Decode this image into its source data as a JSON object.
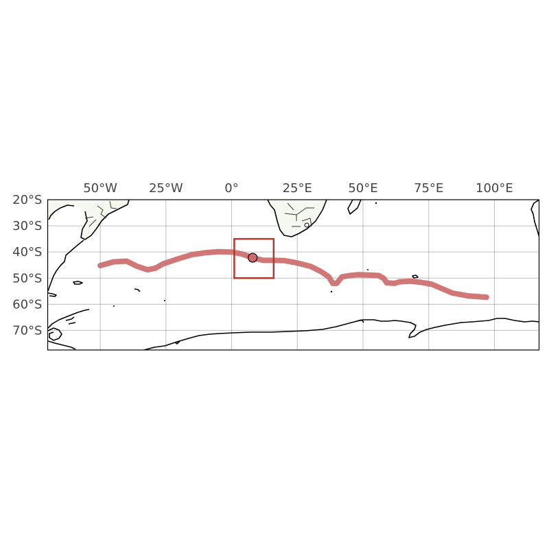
{
  "map": {
    "projection": "plate-carree",
    "lon_range": [
      -70,
      117
    ],
    "lat_range": [
      -20,
      -77.5
    ],
    "lon_ticks": [
      {
        "value": -50,
        "label": "50°W"
      },
      {
        "value": -25,
        "label": "25°W"
      },
      {
        "value": 0,
        "label": "0°"
      },
      {
        "value": 25,
        "label": "25°E"
      },
      {
        "value": 50,
        "label": "50°E"
      },
      {
        "value": 75,
        "label": "75°E"
      },
      {
        "value": 100,
        "label": "100°E"
      }
    ],
    "lat_ticks": [
      {
        "value": -20,
        "label": "20°S"
      },
      {
        "value": -30,
        "label": "30°S"
      },
      {
        "value": -40,
        "label": "40°S"
      },
      {
        "value": -50,
        "label": "50°S"
      },
      {
        "value": -60,
        "label": "60°S"
      },
      {
        "value": -70,
        "label": "70°S"
      }
    ],
    "gridlines": true,
    "track": {
      "color": "#cd6b6b",
      "points": [
        [
          -50,
          -45.2
        ],
        [
          -45,
          -43.8
        ],
        [
          -40,
          -43.5
        ],
        [
          -36,
          -45.5
        ],
        [
          -32,
          -46.8
        ],
        [
          -29,
          -46.2
        ],
        [
          -26,
          -44.5
        ],
        [
          -20,
          -42.5
        ],
        [
          -15,
          -41
        ],
        [
          -10,
          -40.3
        ],
        [
          -5,
          -39.9
        ],
        [
          0,
          -40
        ],
        [
          4,
          -40.8
        ],
        [
          8,
          -42.2
        ],
        [
          12,
          -43.2
        ],
        [
          16,
          -43.2
        ],
        [
          20,
          -43.3
        ],
        [
          25,
          -44.2
        ],
        [
          30,
          -45.5
        ],
        [
          34,
          -47.5
        ],
        [
          37,
          -49.5
        ],
        [
          38.5,
          -52
        ],
        [
          40,
          -52
        ],
        [
          42,
          -49.5
        ],
        [
          45,
          -49
        ],
        [
          48,
          -48.7
        ],
        [
          52,
          -48.8
        ],
        [
          56,
          -49
        ],
        [
          58,
          -50.2
        ],
        [
          59,
          -51.8
        ],
        [
          62,
          -52
        ],
        [
          64,
          -51.4
        ],
        [
          68,
          -51.2
        ],
        [
          72,
          -51.6
        ],
        [
          76,
          -52.3
        ],
        [
          80,
          -54
        ],
        [
          84,
          -55.7
        ],
        [
          90,
          -56.8
        ],
        [
          97,
          -57.3
        ]
      ]
    },
    "region_box": {
      "color": "#b03a2e",
      "lon": [
        1,
        16
      ],
      "lat": [
        -35,
        -50
      ]
    },
    "marker": {
      "lon": 8,
      "lat": -42.2,
      "color": "#cd6b6b"
    }
  }
}
